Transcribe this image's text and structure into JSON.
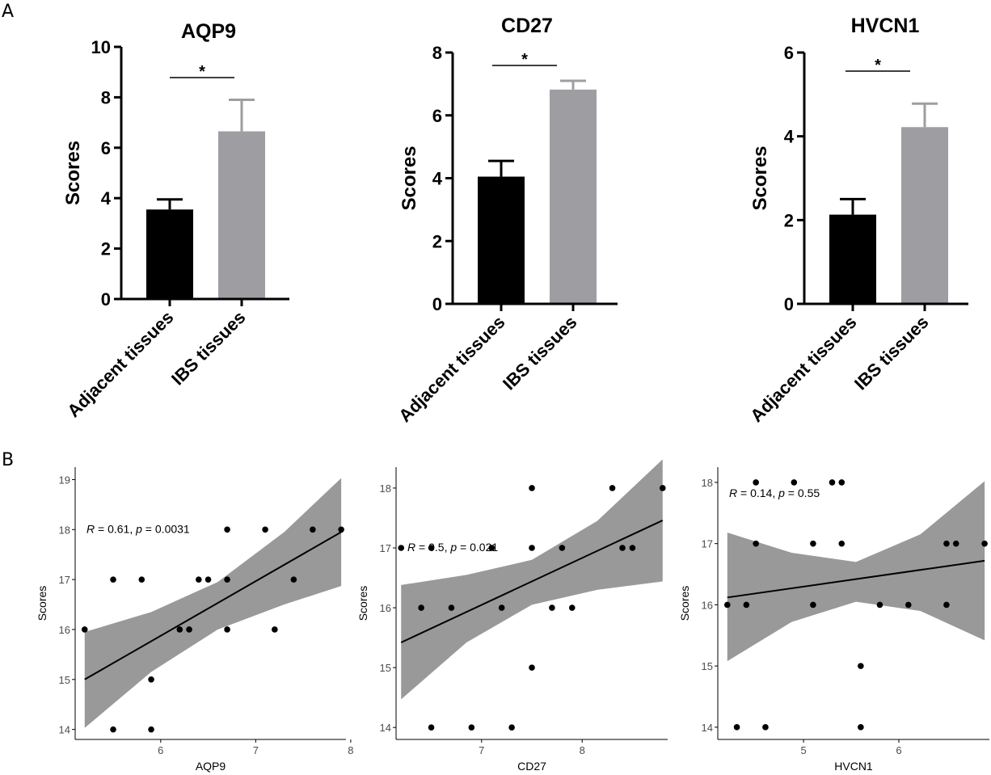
{
  "panel_labels": [
    "A",
    "B"
  ],
  "colors": {
    "adjacent": "#000000",
    "ibs": "#9e9ea2",
    "band": "#999999",
    "line": "#000000",
    "point": "#000000",
    "axis": "#000000",
    "axis_text_b": "#4d4d4d"
  },
  "chart_data": [
    {
      "type": "bar",
      "title": "AQP9",
      "ylabel": "Scores",
      "xlabel": "",
      "categories": [
        "Adjacent tissues",
        "IBS tissues"
      ],
      "values": [
        3.55,
        6.65
      ],
      "errors": [
        0.4,
        1.25
      ],
      "ylim": [
        0,
        10
      ],
      "yticks": [
        "0",
        "2",
        "4",
        "6",
        "8",
        "10"
      ],
      "significance": "*"
    },
    {
      "type": "bar",
      "title": "CD27",
      "ylabel": "Scores",
      "xlabel": "",
      "categories": [
        "Adjacent tissues",
        "IBS tissues"
      ],
      "values": [
        4.05,
        6.82
      ],
      "errors": [
        0.5,
        0.28
      ],
      "ylim": [
        0,
        8
      ],
      "yticks": [
        "0",
        "2",
        "4",
        "6",
        "8"
      ],
      "significance": "*"
    },
    {
      "type": "bar",
      "title": "HVCN1",
      "ylabel": "Scores",
      "xlabel": "",
      "categories": [
        "Adjacent tissues",
        "IBS tissues"
      ],
      "values": [
        2.13,
        4.22
      ],
      "errors": [
        0.37,
        0.56
      ],
      "ylim": [
        0,
        6
      ],
      "yticks": [
        "0",
        "2",
        "4",
        "6"
      ],
      "significance": "*"
    },
    {
      "type": "scatter",
      "xlabel": "AQP9",
      "ylabel": "Scores",
      "xlim": [
        5.1,
        7.95
      ],
      "ylim": [
        13.8,
        19.25
      ],
      "xticks": [
        "6",
        "7",
        "8"
      ],
      "yticks": [
        "14",
        "15",
        "16",
        "17",
        "18",
        "19"
      ],
      "stat_label": {
        "r": "0.61",
        "p": "0.0031"
      },
      "x": [
        5.2,
        5.5,
        5.5,
        5.8,
        5.9,
        5.9,
        6.2,
        6.3,
        6.4,
        6.5,
        6.7,
        6.7,
        6.7,
        7.1,
        7.2,
        7.4,
        7.6,
        7.9
      ],
      "y": [
        16,
        14,
        17,
        17,
        15,
        14,
        16,
        16,
        17,
        17,
        18,
        17,
        16,
        18,
        16,
        17,
        18,
        18
      ],
      "fit": {
        "x": [
          5.2,
          5.9,
          6.6,
          7.3,
          7.9
        ],
        "y": [
          15.0,
          15.75,
          16.45,
          17.2,
          17.95
        ]
      },
      "band_upper": [
        15.95,
        16.35,
        16.95,
        17.95,
        19.03
      ],
      "band_lower": [
        14.03,
        15.15,
        16.0,
        16.5,
        16.87
      ]
    },
    {
      "type": "scatter",
      "xlabel": "CD27",
      "ylabel": "Scores",
      "xlim": [
        6.15,
        8.85
      ],
      "ylim": [
        13.8,
        18.35
      ],
      "xticks": [
        "7",
        "8"
      ],
      "yticks": [
        "14",
        "15",
        "16",
        "17",
        "18"
      ],
      "stat_label": {
        "r": "0.5",
        "p": "0.021"
      },
      "x": [
        6.2,
        6.4,
        6.5,
        6.5,
        6.7,
        6.9,
        7.1,
        7.2,
        7.3,
        7.5,
        7.5,
        7.5,
        7.7,
        7.8,
        7.9,
        8.3,
        8.4,
        8.5,
        8.8
      ],
      "y": [
        17,
        16,
        14,
        17,
        16,
        14,
        17,
        16,
        14,
        18,
        17,
        15,
        16,
        17,
        16,
        18,
        17,
        17,
        18
      ],
      "fit": {
        "x": [
          6.2,
          6.85,
          7.5,
          8.15,
          8.8
        ],
        "y": [
          15.42,
          15.93,
          16.44,
          16.95,
          17.46
        ]
      },
      "band_upper": [
        16.38,
        16.55,
        16.8,
        17.45,
        18.48
      ],
      "band_lower": [
        14.47,
        15.42,
        16.05,
        16.3,
        16.44
      ]
    },
    {
      "type": "scatter",
      "xlabel": "HVCN1",
      "ylabel": "Scores",
      "xlim": [
        4.1,
        6.95
      ],
      "ylim": [
        13.8,
        18.25
      ],
      "xticks": [
        "5",
        "6",
        "7"
      ],
      "yticks": [
        "14",
        "15",
        "16",
        "17",
        "18"
      ],
      "stat_label": {
        "r": "0.14",
        "p": "0.55"
      },
      "x": [
        4.2,
        4.3,
        4.4,
        4.5,
        4.5,
        4.6,
        4.9,
        5.1,
        5.1,
        5.3,
        5.4,
        5.4,
        5.6,
        5.6,
        5.8,
        6.1,
        6.5,
        6.5,
        6.6,
        6.9
      ],
      "y": [
        16,
        14,
        16,
        18,
        17,
        14,
        18,
        17,
        16,
        18,
        18,
        17,
        15,
        14,
        16,
        16,
        17,
        16,
        17,
        17
      ],
      "fit": {
        "x": [
          4.2,
          4.875,
          5.55,
          6.225,
          6.9
        ],
        "y": [
          16.12,
          16.27,
          16.42,
          16.57,
          16.72
        ]
      },
      "band_upper": [
        17.18,
        16.85,
        16.7,
        17.15,
        18.02
      ],
      "band_lower": [
        15.08,
        15.72,
        16.05,
        15.9,
        15.42
      ]
    }
  ]
}
